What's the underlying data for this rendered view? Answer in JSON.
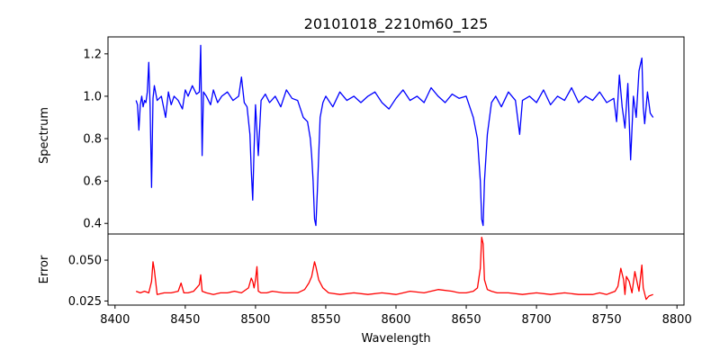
{
  "chart_data": [
    {
      "type": "line",
      "title": "20101018_2210m60_125",
      "xlabel": "",
      "ylabel": "Spectrum",
      "xlim": [
        8395,
        8805
      ],
      "ylim": [
        0.35,
        1.28
      ],
      "yticks": [
        0.4,
        0.6,
        0.8,
        1.0,
        1.2
      ],
      "ytick_labels": [
        "0.4",
        "0.6",
        "0.8",
        "1.0",
        "1.2"
      ],
      "grid": false,
      "series": [
        {
          "color": "#0000ff",
          "x": [
            8415,
            8416,
            8417,
            8418,
            8419,
            8420,
            8421,
            8422,
            8423,
            8424,
            8425,
            8426,
            8427,
            8428,
            8430,
            8433,
            8436,
            8438,
            8440,
            8442,
            8445,
            8448,
            8450,
            8452,
            8455,
            8458,
            8460,
            8461,
            8462,
            8463,
            8465,
            8468,
            8470,
            8473,
            8476,
            8480,
            8484,
            8488,
            8490,
            8492,
            8494,
            8496,
            8497,
            8498,
            8499,
            8500,
            8502,
            8504,
            8507,
            8510,
            8514,
            8518,
            8522,
            8526,
            8530,
            8534,
            8537,
            8539,
            8540,
            8541,
            8542,
            8543,
            8544,
            8546,
            8548,
            8550,
            8555,
            8560,
            8565,
            8570,
            8575,
            8580,
            8585,
            8590,
            8595,
            8600,
            8605,
            8610,
            8615,
            8620,
            8625,
            8630,
            8635,
            8640,
            8645,
            8650,
            8655,
            8658,
            8660,
            8661,
            8662,
            8663,
            8665,
            8668,
            8671,
            8675,
            8680,
            8685,
            8688,
            8690,
            8695,
            8700,
            8705,
            8710,
            8715,
            8720,
            8725,
            8730,
            8735,
            8740,
            8745,
            8750,
            8755,
            8757,
            8759,
            8761,
            8763,
            8765,
            8767,
            8769,
            8771,
            8773,
            8775,
            8776,
            8777,
            8779,
            8781,
            8783
          ],
          "y": [
            0.98,
            0.96,
            0.84,
            0.96,
            1.0,
            0.95,
            0.98,
            0.97,
            1.02,
            1.16,
            0.95,
            0.57,
            0.99,
            1.05,
            0.98,
            1.0,
            0.9,
            1.02,
            0.96,
            1.0,
            0.98,
            0.94,
            1.03,
            1.0,
            1.05,
            1.01,
            1.02,
            1.24,
            0.72,
            1.02,
            1.0,
            0.96,
            1.03,
            0.97,
            1.0,
            1.02,
            0.98,
            1.0,
            1.09,
            0.97,
            0.95,
            0.82,
            0.65,
            0.51,
            0.75,
            0.96,
            0.72,
            0.98,
            1.01,
            0.97,
            1.0,
            0.95,
            1.03,
            0.99,
            0.98,
            0.9,
            0.88,
            0.8,
            0.72,
            0.6,
            0.42,
            0.39,
            0.55,
            0.9,
            0.97,
            1.0,
            0.95,
            1.02,
            0.98,
            1.0,
            0.97,
            1.0,
            1.02,
            0.97,
            0.94,
            0.99,
            1.03,
            0.98,
            1.0,
            0.97,
            1.04,
            1.0,
            0.97,
            1.01,
            0.99,
            1.0,
            0.9,
            0.8,
            0.6,
            0.42,
            0.39,
            0.6,
            0.82,
            0.97,
            1.0,
            0.95,
            1.02,
            0.98,
            0.82,
            0.98,
            1.0,
            0.97,
            1.03,
            0.96,
            1.0,
            0.98,
            1.04,
            0.97,
            1.0,
            0.98,
            1.02,
            0.97,
            0.99,
            0.88,
            1.1,
            0.95,
            0.85,
            1.06,
            0.7,
            1.0,
            0.9,
            1.12,
            1.18,
            0.95,
            0.87,
            1.02,
            0.92,
            0.9
          ]
        }
      ]
    },
    {
      "type": "line",
      "title": "",
      "xlabel": "Wavelength",
      "ylabel": "Error",
      "xlim": [
        8395,
        8805
      ],
      "ylim": [
        0.0225,
        0.066
      ],
      "xticks": [
        8400,
        8450,
        8500,
        8550,
        8600,
        8650,
        8700,
        8750,
        8800
      ],
      "xtick_labels": [
        "8400",
        "8450",
        "8500",
        "8550",
        "8600",
        "8650",
        "8700",
        "8750",
        "8800"
      ],
      "yticks": [
        0.025,
        0.05
      ],
      "ytick_labels": [
        "0.025",
        "0.050"
      ],
      "grid": false,
      "series": [
        {
          "color": "#ff0000",
          "x": [
            8415,
            8418,
            8421,
            8424,
            8426,
            8427,
            8428,
            8430,
            8435,
            8440,
            8445,
            8447,
            8449,
            8452,
            8456,
            8460,
            8461,
            8462,
            8465,
            8470,
            8475,
            8480,
            8485,
            8490,
            8495,
            8497,
            8498,
            8499,
            8500,
            8501,
            8502,
            8504,
            8508,
            8512,
            8520,
            8525,
            8530,
            8535,
            8538,
            8540,
            8542,
            8543,
            8545,
            8548,
            8552,
            8560,
            8570,
            8580,
            8590,
            8600,
            8610,
            8620,
            8630,
            8640,
            8645,
            8650,
            8655,
            8658,
            8660,
            8661,
            8662,
            8663,
            8665,
            8668,
            8672,
            8680,
            8690,
            8700,
            8710,
            8720,
            8730,
            8740,
            8745,
            8750,
            8753,
            8756,
            8758,
            8760,
            8762,
            8763,
            8764,
            8766,
            8768,
            8770,
            8773,
            8774,
            8775,
            8776,
            8778,
            8780,
            8783
          ],
          "y": [
            0.031,
            0.03,
            0.031,
            0.03,
            0.037,
            0.049,
            0.044,
            0.029,
            0.03,
            0.03,
            0.031,
            0.036,
            0.03,
            0.03,
            0.031,
            0.035,
            0.041,
            0.031,
            0.03,
            0.029,
            0.03,
            0.03,
            0.031,
            0.03,
            0.033,
            0.039,
            0.037,
            0.033,
            0.038,
            0.046,
            0.031,
            0.03,
            0.03,
            0.031,
            0.03,
            0.03,
            0.03,
            0.032,
            0.036,
            0.04,
            0.049,
            0.046,
            0.038,
            0.033,
            0.03,
            0.029,
            0.03,
            0.029,
            0.03,
            0.029,
            0.031,
            0.03,
            0.032,
            0.031,
            0.03,
            0.03,
            0.031,
            0.033,
            0.045,
            0.064,
            0.06,
            0.038,
            0.032,
            0.031,
            0.03,
            0.03,
            0.029,
            0.03,
            0.029,
            0.03,
            0.029,
            0.029,
            0.03,
            0.029,
            0.03,
            0.031,
            0.034,
            0.045,
            0.038,
            0.029,
            0.04,
            0.037,
            0.03,
            0.043,
            0.031,
            0.039,
            0.047,
            0.033,
            0.026,
            0.028,
            0.029
          ]
        }
      ]
    }
  ]
}
